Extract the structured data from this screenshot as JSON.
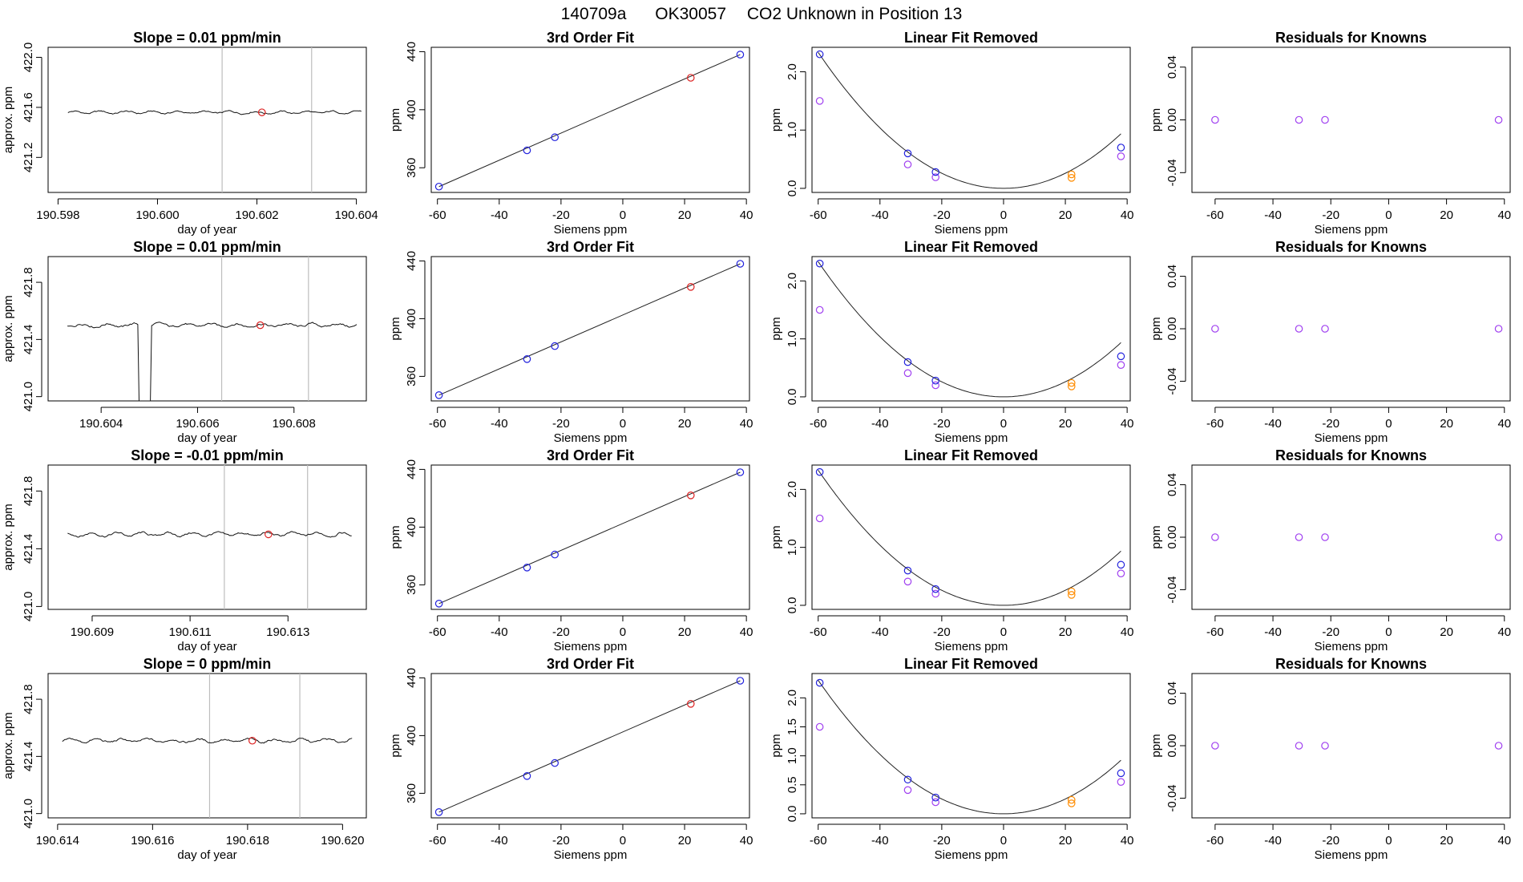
{
  "figure": {
    "title_id": "140709a",
    "title_instrument": "OK30057",
    "title_desc": "CO2 Unknown in Position  13"
  },
  "chart_data": [
    {
      "type": "line",
      "panel": "time-series",
      "title": "Slope =  0.01  ppm/min",
      "xlabel": "day of year",
      "ylabel": "approx. ppm",
      "xlim": [
        190.5978,
        190.6042
      ],
      "ylim": [
        420.92,
        422.08
      ],
      "xticks": [
        190.598,
        190.6,
        190.602,
        190.604
      ],
      "xtick_labels": [
        "190.598",
        "190.600",
        "190.602",
        "190.604"
      ],
      "yticks": [
        421.2,
        421.6,
        422.0
      ],
      "ytick_labels": [
        "421.2",
        "421.6",
        "422.0"
      ],
      "x_start": 190.5982,
      "x_end": 190.6041,
      "base": 421.56,
      "amplitude": 0.015,
      "spike": null,
      "vlines": [
        190.6013,
        190.6031
      ],
      "marker": {
        "x": 190.6021,
        "y": 421.56
      }
    },
    {
      "type": "scatter",
      "panel": "fit",
      "title": "3rd Order Fit",
      "xlabel": "Siemens ppm",
      "ylabel": "ppm",
      "xlim": [
        -62,
        41
      ],
      "ylim": [
        343,
        443
      ],
      "xticks": [
        -60,
        -40,
        -20,
        0,
        20,
        40
      ],
      "xtick_labels": [
        "-60",
        "-40",
        "-20",
        "0",
        "20",
        "40"
      ],
      "yticks": [
        360,
        400,
        440
      ],
      "ytick_labels": [
        "360",
        "400",
        "440"
      ],
      "points_blue": [
        [
          -59.5,
          347
        ],
        [
          -31,
          372
        ],
        [
          -22,
          381
        ],
        [
          38,
          438
        ]
      ],
      "points_red": [
        [
          22,
          422
        ]
      ],
      "line": [
        [
          -59.5,
          347
        ],
        [
          38,
          438
        ]
      ]
    },
    {
      "type": "scatter",
      "panel": "linear-removed",
      "title": "Linear Fit Removed",
      "xlabel": "Siemens ppm",
      "ylabel": "ppm",
      "xlim": [
        -62,
        41
      ],
      "ylim": [
        -0.07,
        2.42
      ],
      "xticks": [
        -60,
        -40,
        -20,
        0,
        20,
        40
      ],
      "xtick_labels": [
        "-60",
        "-40",
        "-20",
        "0",
        "20",
        "40"
      ],
      "yticks": [
        0.0,
        1.0,
        2.0
      ],
      "ytick_labels": [
        "0.0",
        "1.0",
        "2.0"
      ],
      "points_blue": [
        [
          -59.5,
          2.3
        ],
        [
          -31,
          0.6
        ],
        [
          -22,
          0.28
        ],
        [
          38,
          0.7
        ]
      ],
      "points_purple": [
        [
          -59.5,
          1.5
        ],
        [
          -31,
          0.41
        ],
        [
          -22,
          0.19
        ],
        [
          38,
          0.55
        ]
      ],
      "points_orange": [
        [
          22,
          0.18
        ],
        [
          22,
          0.24
        ]
      ],
      "points_red": [],
      "curve_coeff": 0.000648
    },
    {
      "type": "scatter",
      "panel": "residuals",
      "title": "Residuals for Knowns",
      "xlabel": "Siemens ppm",
      "ylabel": "ppm",
      "xlim": [
        -68,
        42
      ],
      "ylim": [
        -0.055,
        0.055
      ],
      "xticks": [
        -60,
        -40,
        -20,
        0,
        20,
        40
      ],
      "xtick_labels": [
        "-60",
        "-40",
        "-20",
        "0",
        "20",
        "40"
      ],
      "yticks": [
        -0.04,
        0.0,
        0.04
      ],
      "ytick_labels": [
        "-0.04",
        "0.00",
        "0.04"
      ],
      "points_purple": [
        [
          -60,
          0
        ],
        [
          -31,
          0
        ],
        [
          -22,
          0
        ],
        [
          38,
          0
        ]
      ]
    },
    {
      "type": "line",
      "panel": "time-series",
      "title": "Slope =  0.01  ppm/min",
      "xlabel": "day of year",
      "ylabel": "approx. ppm",
      "xlim": [
        190.6029,
        190.6095
      ],
      "ylim": [
        420.97,
        421.98
      ],
      "xticks": [
        190.604,
        190.606,
        190.608
      ],
      "xtick_labels": [
        "190.604",
        "190.606",
        "190.608"
      ],
      "yticks": [
        421.0,
        421.4,
        421.8
      ],
      "ytick_labels": [
        "421.0",
        "421.4",
        "421.8"
      ],
      "x_start": 190.6033,
      "x_end": 190.6093,
      "base": 421.5,
      "amplitude": 0.018,
      "spike": {
        "x": 190.6049,
        "width": 0.00025,
        "y": 420.97
      },
      "vlines": [
        190.6065,
        190.6083
      ],
      "marker": {
        "x": 190.6073,
        "y": 421.5
      }
    },
    {
      "type": "scatter",
      "panel": "fit",
      "title": "3rd Order Fit",
      "xlabel": "Siemens ppm",
      "ylabel": "ppm",
      "xlim": [
        -62,
        41
      ],
      "ylim": [
        343,
        443
      ],
      "xticks": [
        -60,
        -40,
        -20,
        0,
        20,
        40
      ],
      "xtick_labels": [
        "-60",
        "-40",
        "-20",
        "0",
        "20",
        "40"
      ],
      "yticks": [
        360,
        400,
        440
      ],
      "ytick_labels": [
        "360",
        "400",
        "440"
      ],
      "points_blue": [
        [
          -59.5,
          347
        ],
        [
          -31,
          372
        ],
        [
          -22,
          381
        ],
        [
          38,
          438
        ]
      ],
      "points_red": [
        [
          22,
          422
        ]
      ],
      "line": [
        [
          -59.5,
          347
        ],
        [
          38,
          438
        ]
      ]
    },
    {
      "type": "scatter",
      "panel": "linear-removed",
      "title": "Linear Fit Removed",
      "xlabel": "Siemens ppm",
      "ylabel": "ppm",
      "xlim": [
        -62,
        41
      ],
      "ylim": [
        -0.07,
        2.42
      ],
      "xticks": [
        -60,
        -40,
        -20,
        0,
        20,
        40
      ],
      "xtick_labels": [
        "-60",
        "-40",
        "-20",
        "0",
        "20",
        "40"
      ],
      "yticks": [
        0.0,
        1.0,
        2.0
      ],
      "ytick_labels": [
        "0.0",
        "1.0",
        "2.0"
      ],
      "points_blue": [
        [
          -59.5,
          2.3
        ],
        [
          -31,
          0.6
        ],
        [
          -22,
          0.28
        ],
        [
          38,
          0.7
        ]
      ],
      "points_purple": [
        [
          -59.5,
          1.5
        ],
        [
          -31,
          0.41
        ],
        [
          -22,
          0.2
        ],
        [
          38,
          0.55
        ]
      ],
      "points_orange": [
        [
          22,
          0.18
        ],
        [
          22,
          0.24
        ]
      ],
      "points_red": [],
      "curve_coeff": 0.000648
    },
    {
      "type": "scatter",
      "panel": "residuals",
      "title": "Residuals for Knowns",
      "xlabel": "Siemens ppm",
      "ylabel": "ppm",
      "xlim": [
        -68,
        42
      ],
      "ylim": [
        -0.055,
        0.055
      ],
      "xticks": [
        -60,
        -40,
        -20,
        0,
        20,
        40
      ],
      "xtick_labels": [
        "-60",
        "-40",
        "-20",
        "0",
        "20",
        "40"
      ],
      "yticks": [
        -0.04,
        0.0,
        0.04
      ],
      "ytick_labels": [
        "-0.04",
        "0.00",
        "0.04"
      ],
      "points_purple": [
        [
          -60,
          0
        ],
        [
          -31,
          0
        ],
        [
          -22,
          0
        ],
        [
          38,
          0
        ]
      ]
    },
    {
      "type": "line",
      "panel": "time-series",
      "title": "Slope =  -0.01  ppm/min",
      "xlabel": "day of year",
      "ylabel": "approx. ppm",
      "xlim": [
        190.6081,
        190.6146
      ],
      "ylim": [
        420.98,
        421.98
      ],
      "xticks": [
        190.609,
        190.611,
        190.613
      ],
      "xtick_labels": [
        "190.609",
        "190.611",
        "190.613"
      ],
      "yticks": [
        421.0,
        421.4,
        421.8
      ],
      "ytick_labels": [
        "421.0",
        "421.4",
        "421.8"
      ],
      "x_start": 190.6085,
      "x_end": 190.6143,
      "base": 421.5,
      "amplitude": 0.018,
      "spike": null,
      "vlines": [
        190.6117,
        190.6134
      ],
      "marker": {
        "x": 190.6126,
        "y": 421.5
      }
    },
    {
      "type": "scatter",
      "panel": "fit",
      "title": "3rd Order Fit",
      "xlabel": "Siemens ppm",
      "ylabel": "ppm",
      "xlim": [
        -62,
        41
      ],
      "ylim": [
        343,
        443
      ],
      "xticks": [
        -60,
        -40,
        -20,
        0,
        20,
        40
      ],
      "xtick_labels": [
        "-60",
        "-40",
        "-20",
        "0",
        "20",
        "40"
      ],
      "yticks": [
        360,
        400,
        440
      ],
      "ytick_labels": [
        "360",
        "400",
        "440"
      ],
      "points_blue": [
        [
          -59.5,
          347
        ],
        [
          -31,
          372
        ],
        [
          -22,
          381
        ],
        [
          38,
          438
        ]
      ],
      "points_red": [
        [
          22,
          422
        ]
      ],
      "line": [
        [
          -59.5,
          347
        ],
        [
          38,
          438
        ]
      ]
    },
    {
      "type": "scatter",
      "panel": "linear-removed",
      "title": "Linear Fit Removed",
      "xlabel": "Siemens ppm",
      "ylabel": "ppm",
      "xlim": [
        -62,
        41
      ],
      "ylim": [
        -0.07,
        2.42
      ],
      "xticks": [
        -60,
        -40,
        -20,
        0,
        20,
        40
      ],
      "xtick_labels": [
        "-60",
        "-40",
        "-20",
        "0",
        "20",
        "40"
      ],
      "yticks": [
        0.0,
        1.0,
        2.0
      ],
      "ytick_labels": [
        "0.0",
        "1.0",
        "2.0"
      ],
      "points_blue": [
        [
          -59.5,
          2.3
        ],
        [
          -31,
          0.6
        ],
        [
          -22,
          0.28
        ],
        [
          38,
          0.7
        ]
      ],
      "points_purple": [
        [
          -59.5,
          1.5
        ],
        [
          -31,
          0.41
        ],
        [
          -22,
          0.2
        ],
        [
          38,
          0.55
        ]
      ],
      "points_orange": [
        [
          22,
          0.18
        ],
        [
          22,
          0.24
        ]
      ],
      "points_red": [],
      "curve_coeff": 0.000648
    },
    {
      "type": "scatter",
      "panel": "residuals",
      "title": "Residuals for Knowns",
      "xlabel": "Siemens ppm",
      "ylabel": "ppm",
      "xlim": [
        -68,
        42
      ],
      "ylim": [
        -0.055,
        0.055
      ],
      "xticks": [
        -60,
        -40,
        -20,
        0,
        20,
        40
      ],
      "xtick_labels": [
        "-60",
        "-40",
        "-20",
        "0",
        "20",
        "40"
      ],
      "yticks": [
        -0.04,
        0.0,
        0.04
      ],
      "ytick_labels": [
        "-0.04",
        "0.00",
        "0.04"
      ],
      "points_purple": [
        [
          -60,
          0
        ],
        [
          -31,
          0
        ],
        [
          -22,
          0
        ],
        [
          38,
          0
        ]
      ]
    },
    {
      "type": "line",
      "panel": "time-series",
      "title": "Slope =  0  ppm/min",
      "xlabel": "day of year",
      "ylabel": "approx. ppm",
      "xlim": [
        190.6138,
        190.6205
      ],
      "ylim": [
        420.97,
        421.98
      ],
      "xticks": [
        190.614,
        190.616,
        190.618,
        190.62
      ],
      "xtick_labels": [
        "190.614",
        "190.616",
        "190.618",
        "190.620"
      ],
      "yticks": [
        421.0,
        421.4,
        421.8
      ],
      "ytick_labels": [
        "421.0",
        "421.4",
        "421.8"
      ],
      "x_start": 190.6141,
      "x_end": 190.6202,
      "base": 421.51,
      "amplitude": 0.018,
      "spike": null,
      "vlines": [
        190.6172,
        190.6191
      ],
      "marker": {
        "x": 190.6181,
        "y": 421.51
      }
    },
    {
      "type": "scatter",
      "panel": "fit",
      "title": "3rd Order Fit",
      "xlabel": "Siemens ppm",
      "ylabel": "ppm",
      "xlim": [
        -62,
        41
      ],
      "ylim": [
        343,
        443
      ],
      "xticks": [
        -60,
        -40,
        -20,
        0,
        20,
        40
      ],
      "xtick_labels": [
        "-60",
        "-40",
        "-20",
        "0",
        "20",
        "40"
      ],
      "yticks": [
        360,
        400,
        440
      ],
      "ytick_labels": [
        "360",
        "400",
        "440"
      ],
      "points_blue": [
        [
          -59.5,
          347
        ],
        [
          -31,
          372
        ],
        [
          -22,
          381
        ],
        [
          38,
          438
        ]
      ],
      "points_red": [
        [
          22,
          422
        ]
      ],
      "line": [
        [
          -59.5,
          347
        ],
        [
          38,
          438
        ]
      ]
    },
    {
      "type": "scatter",
      "panel": "linear-removed",
      "title": "Linear Fit Removed",
      "xlabel": "Siemens ppm",
      "ylabel": "ppm",
      "xlim": [
        -62,
        41
      ],
      "ylim": [
        -0.07,
        2.42
      ],
      "xticks": [
        -60,
        -40,
        -20,
        0,
        20,
        40
      ],
      "xtick_labels": [
        "-60",
        "-40",
        "-20",
        "0",
        "20",
        "40"
      ],
      "yticks": [
        0.0,
        0.5,
        1.0,
        1.5,
        2.0
      ],
      "ytick_labels": [
        "0.0",
        "0.5",
        "1.0",
        "1.5",
        "2.0"
      ],
      "points_blue": [
        [
          -59.5,
          2.26
        ],
        [
          -31,
          0.59
        ],
        [
          -22,
          0.28
        ],
        [
          38,
          0.7
        ]
      ],
      "points_purple": [
        [
          -59.5,
          1.5
        ],
        [
          -31,
          0.41
        ],
        [
          -22,
          0.2
        ],
        [
          38,
          0.55
        ]
      ],
      "points_orange": [
        [
          22,
          0.18
        ],
        [
          22,
          0.24
        ]
      ],
      "points_red": [],
      "curve_coeff": 0.00064
    },
    {
      "type": "scatter",
      "panel": "residuals",
      "title": "Residuals for Knowns",
      "xlabel": "Siemens ppm",
      "ylabel": "ppm",
      "xlim": [
        -68,
        42
      ],
      "ylim": [
        -0.055,
        0.055
      ],
      "xticks": [
        -60,
        -40,
        -20,
        0,
        20,
        40
      ],
      "xtick_labels": [
        "-60",
        "-40",
        "-20",
        "0",
        "20",
        "40"
      ],
      "yticks": [
        -0.04,
        0.0,
        0.04
      ],
      "ytick_labels": [
        "-0.04",
        "0.00",
        "0.04"
      ],
      "points_purple": [
        [
          -60,
          0
        ],
        [
          -31,
          0
        ],
        [
          -22,
          0
        ],
        [
          38,
          0
        ]
      ]
    }
  ],
  "colors": {
    "blue": "#2222dd",
    "red": "#dd2222",
    "purple": "#a040f0",
    "orange": "#ff8c00",
    "grey_line": "#bdbdbd",
    "axis": "#000000"
  }
}
